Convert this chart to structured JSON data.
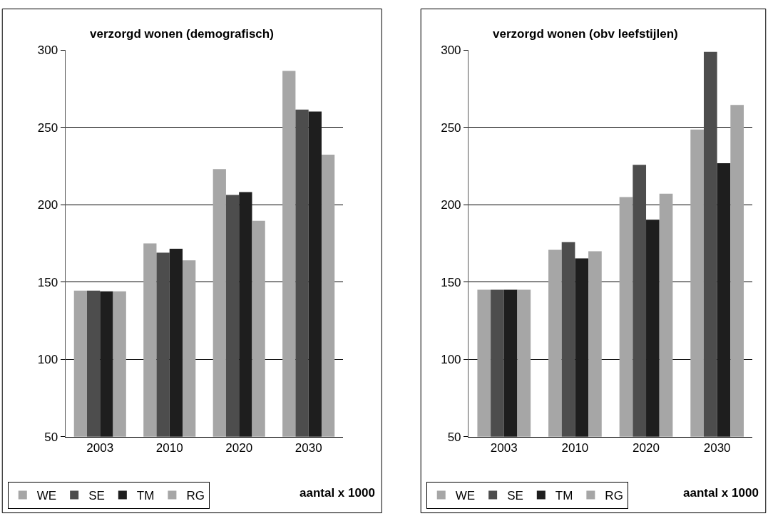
{
  "chart_data": [
    {
      "type": "bar",
      "title": "verzorgd wonen (demografisch)",
      "categories": [
        "2003",
        "2010",
        "2020",
        "2030"
      ],
      "series": [
        {
          "name": "WE",
          "color": "#a6a6a6",
          "values": [
            144.5,
            175,
            223,
            286.5
          ]
        },
        {
          "name": "SE",
          "color": "#4d4d4d",
          "values": [
            144.5,
            169,
            206.3,
            261.5
          ]
        },
        {
          "name": "TM",
          "color": "#1e1e1e",
          "values": [
            144,
            171.5,
            208.2,
            260.3
          ]
        },
        {
          "name": "RG",
          "color": "#a6a6a6",
          "values": [
            144,
            164,
            189.6,
            232.4
          ]
        }
      ],
      "ylim": [
        50,
        300
      ],
      "yticks": [
        50,
        100,
        150,
        200,
        250,
        300
      ],
      "grid": "y",
      "legend": "bottom left",
      "annotations": [
        "aantal x 1000"
      ]
    },
    {
      "type": "bar",
      "title": "verzorgd wonen (obv leefstijlen)",
      "categories": [
        "2003",
        "2010",
        "2020",
        "2030"
      ],
      "series": [
        {
          "name": "WE",
          "color": "#a6a6a6",
          "values": [
            145,
            170.8,
            204.9,
            248.6
          ]
        },
        {
          "name": "SE",
          "color": "#4d4d4d",
          "values": [
            145,
            175.8,
            225.8,
            298.8
          ]
        },
        {
          "name": "TM",
          "color": "#1e1e1e",
          "values": [
            145,
            165.3,
            190.3,
            226.8
          ]
        },
        {
          "name": "RG",
          "color": "#a6a6a6",
          "values": [
            145,
            169.9,
            207.1,
            264.5
          ]
        }
      ],
      "ylim": [
        50,
        300
      ],
      "yticks": [
        50,
        100,
        150,
        200,
        250,
        300
      ],
      "grid": "y",
      "legend": "bottom left",
      "annotations": [
        "aantal x 1000"
      ]
    }
  ]
}
